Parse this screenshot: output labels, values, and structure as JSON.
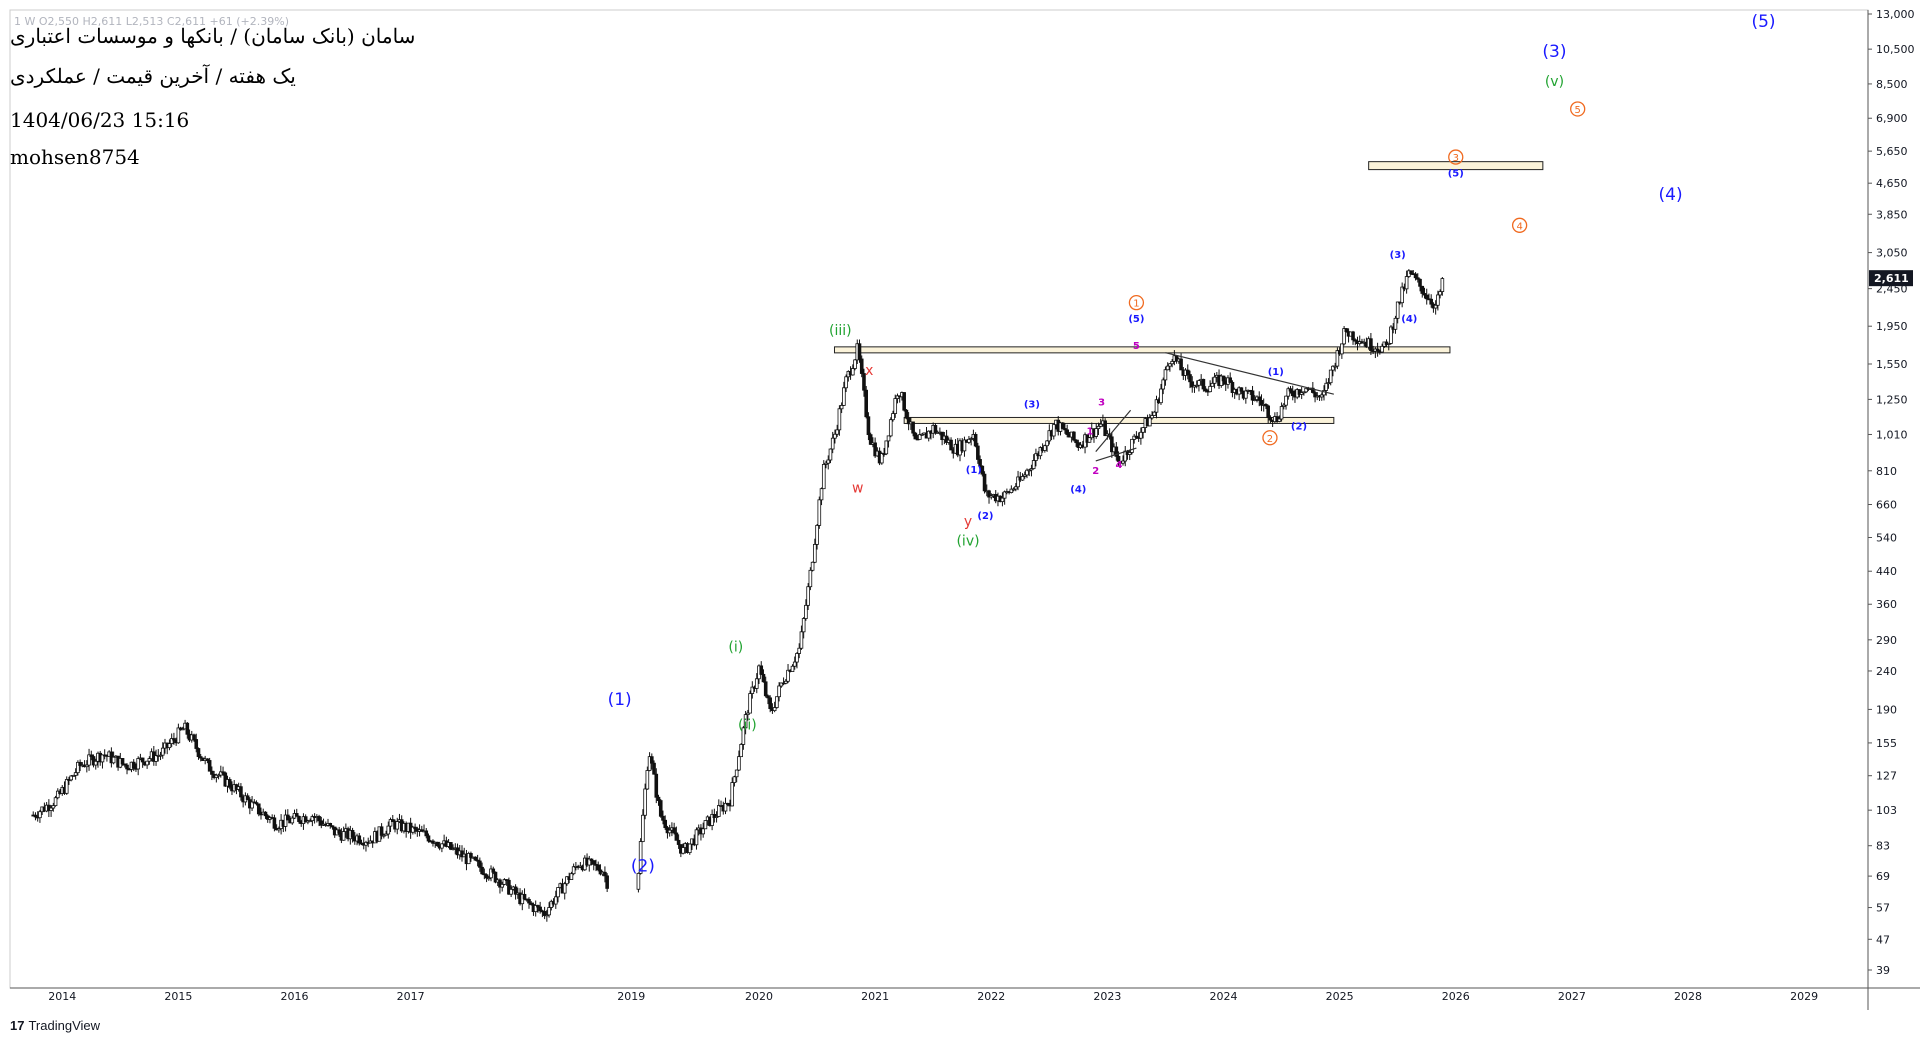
{
  "header": {
    "symbol_line": "سامان (بانک سامان) / بانکها و موسسات اعتباری",
    "timeframe_line": "یک هفته / آخرین قیمت / عملکردی",
    "datetime": "1404/06/23 15:16",
    "author": "mohsen8754",
    "ohlc_line": "1  W  O2,550  H2,611  L2,513  C2,611  +61 (+2.39%)"
  },
  "branding": {
    "logo_text": "TradingView",
    "logo_icon": "tradingview-logo-icon"
  },
  "colors": {
    "blue": "#1a1aff",
    "green": "#21a331",
    "red": "#e53935",
    "orange": "#f06a20",
    "magenta": "#c000c0",
    "candle": "#111111",
    "zone_fill": "#fbf3da",
    "zone_stroke": "#222222",
    "price_tag_bg": "#131722"
  },
  "chart_data": {
    "type": "candlestick",
    "scale": "log",
    "x_axis_labels": [
      "2014",
      "2015",
      "2016",
      "2017",
      "2019",
      "2020",
      "2021",
      "2022",
      "2023",
      "2024",
      "2025",
      "2026",
      "2027",
      "2028",
      "2029"
    ],
    "y_axis_labels": [
      "13,000",
      "10,500",
      "8,500",
      "6,900",
      "5,650",
      "4,650",
      "3,850",
      "3,050",
      "2,450",
      "1,950",
      "1,550",
      "1,250",
      "1,010",
      "810",
      "660",
      "540",
      "440",
      "360",
      "290",
      "240",
      "190",
      "155",
      "127",
      "103",
      "83",
      "69",
      "57",
      "47",
      "39"
    ],
    "ylim": [
      39,
      13000
    ],
    "last_price": "2,611",
    "price_path": [
      [
        "2013.8",
        100
      ],
      [
        "2014.0",
        110
      ],
      [
        "2014.2",
        135
      ],
      [
        "2014.4",
        145
      ],
      [
        "2014.6",
        135
      ],
      [
        "2014.9",
        145
      ],
      [
        "2015.1",
        170
      ],
      [
        "2015.3",
        135
      ],
      [
        "2015.5",
        120
      ],
      [
        "2015.7",
        105
      ],
      [
        "2015.9",
        95
      ],
      [
        "2016.2",
        100
      ],
      [
        "2016.4",
        90
      ],
      [
        "2016.7",
        86
      ],
      [
        "2016.9",
        95
      ],
      [
        "2017.2",
        88
      ],
      [
        "2017.5",
        78
      ],
      [
        "2017.8",
        68
      ],
      [
        "2018.0",
        60
      ],
      [
        "2018.2",
        55
      ],
      [
        "2018.5",
        75
      ],
      [
        "2018.7",
        72
      ],
      [
        "2018.9",
        50
      ],
      [
        "2019.0",
        65
      ],
      [
        "2019.1",
        150
      ],
      [
        "2019.2",
        100
      ],
      [
        "2019.4",
        80
      ],
      [
        "2019.6",
        95
      ],
      [
        "2019.8",
        110
      ],
      [
        "2019.95",
        190
      ],
      [
        "2020.05",
        245
      ],
      [
        "2020.15",
        185
      ],
      [
        "2020.25",
        225
      ],
      [
        "2020.4",
        275
      ],
      [
        "2020.5",
        450
      ],
      [
        "2020.6",
        800
      ],
      [
        "2020.7",
        1000
      ],
      [
        "2020.8",
        1400
      ],
      [
        "2020.9",
        1700
      ],
      [
        "2021.0",
        1000
      ],
      [
        "2021.1",
        850
      ],
      [
        "2021.25",
        1350
      ],
      [
        "2021.4",
        950
      ],
      [
        "2021.55",
        1050
      ],
      [
        "2021.75",
        920
      ],
      [
        "2021.9",
        1020
      ],
      [
        "2022.0",
        700
      ],
      [
        "2022.15",
        690
      ],
      [
        "2022.3",
        760
      ],
      [
        "2022.45",
        900
      ],
      [
        "2022.6",
        1080
      ],
      [
        "2022.8",
        950
      ],
      [
        "2023.0",
        1080
      ],
      [
        "2023.15",
        850
      ],
      [
        "2023.3",
        1000
      ],
      [
        "2023.45",
        1150
      ],
      [
        "2023.6",
        1650
      ],
      [
        "2023.75",
        1400
      ],
      [
        "2023.9",
        1350
      ],
      [
        "2024.05",
        1420
      ],
      [
        "2024.2",
        1300
      ],
      [
        "2024.35",
        1250
      ],
      [
        "2024.5",
        1100
      ],
      [
        "2024.6",
        1280
      ],
      [
        "2024.75",
        1350
      ],
      [
        "2024.9",
        1250
      ],
      [
        "2025.0",
        1550
      ],
      [
        "2025.1",
        1900
      ],
      [
        "2025.3",
        1750
      ],
      [
        "2025.45",
        1700
      ],
      [
        "2025.55",
        2200
      ],
      [
        "2025.65",
        2700
      ],
      [
        "2025.78",
        2400
      ],
      [
        "2025.88",
        2200
      ],
      [
        "2025.95",
        2611
      ]
    ],
    "zones": [
      {
        "name": "resistance-zone-top",
        "from": "2020.7",
        "to": "2026.0",
        "price_low": 1660,
        "price_high": 1720
      },
      {
        "name": "resistance-zone-mid",
        "from": "2021.3",
        "to": "2025.0",
        "price_low": 1080,
        "price_high": 1120
      },
      {
        "name": "target-zone",
        "from": "2025.3",
        "to": "2026.8",
        "price_low": 5050,
        "price_high": 5300
      }
    ],
    "trendlines": [
      {
        "name": "triangle-upper-line",
        "points": [
          [
            "2023.55",
            1660
          ],
          [
            "2025.0",
            1290
          ]
        ]
      },
      {
        "name": "wedge-upper-line",
        "points": [
          [
            "2022.95",
            910
          ],
          [
            "2023.25",
            1170
          ]
        ]
      },
      {
        "name": "wedge-lower-line",
        "points": [
          [
            "2022.95",
            860
          ],
          [
            "2023.3",
            930
          ]
        ]
      }
    ],
    "wave_labels": [
      {
        "text": "(1)",
        "color": "blue",
        "size": "large",
        "x": "2018.85",
        "price": 195
      },
      {
        "text": "(2)",
        "color": "blue",
        "size": "large",
        "x": "2019.05",
        "price": 71
      },
      {
        "text": "(i)",
        "color": "green",
        "size": "med",
        "x": "2019.85",
        "price": 270
      },
      {
        "text": "(ii)",
        "color": "green",
        "size": "med",
        "x": "2019.95",
        "price": 168
      },
      {
        "text": "(iii)",
        "color": "green",
        "size": "med",
        "x": "2020.75",
        "price": 1850
      },
      {
        "text": "x",
        "color": "red",
        "size": "med",
        "x": "2021.0",
        "price": 1450
      },
      {
        "text": "w",
        "color": "red",
        "size": "med",
        "x": "2020.9",
        "price": 710
      },
      {
        "text": "y",
        "color": "red",
        "size": "med",
        "x": "2021.85",
        "price": 580
      },
      {
        "text": "(iv)",
        "color": "green",
        "size": "med",
        "x": "2021.85",
        "price": 515
      },
      {
        "text": "(1)",
        "color": "blue",
        "size": "small",
        "x": "2021.9",
        "price": 800
      },
      {
        "text": "(2)",
        "color": "blue",
        "size": "small",
        "x": "2022.0",
        "price": 605
      },
      {
        "text": "(3)",
        "color": "blue",
        "size": "small",
        "x": "2022.4",
        "price": 1190
      },
      {
        "text": "(4)",
        "color": "blue",
        "size": "small",
        "x": "2022.8",
        "price": 710
      },
      {
        "text": "(5)",
        "color": "blue",
        "size": "small",
        "x": "2023.3",
        "price": 2000
      },
      {
        "text": "5",
        "color": "magenta",
        "size": "small",
        "x": "2023.3",
        "price": 1700
      },
      {
        "text": "1",
        "color": "magenta",
        "size": "small",
        "x": "2022.9",
        "price": 1010
      },
      {
        "text": "2",
        "color": "magenta",
        "size": "small",
        "x": "2022.95",
        "price": 795
      },
      {
        "text": "3",
        "color": "magenta",
        "size": "small",
        "x": "2023.0",
        "price": 1205
      },
      {
        "text": "4",
        "color": "magenta",
        "size": "small",
        "x": "2023.15",
        "price": 825
      },
      {
        "text": "(1)",
        "color": "blue",
        "size": "small",
        "x": "2024.5",
        "price": 1450
      },
      {
        "text": "(2)",
        "color": "blue",
        "size": "small",
        "x": "2024.7",
        "price": 1040
      },
      {
        "text": "(3)",
        "color": "blue",
        "size": "small",
        "x": "2025.55",
        "price": 2950
      },
      {
        "text": "(4)",
        "color": "blue",
        "size": "small",
        "x": "2025.65",
        "price": 2000
      },
      {
        "text": "(5)",
        "color": "blue",
        "size": "small",
        "x": "2026.05",
        "price": 4850
      },
      {
        "text": "(3)",
        "color": "blue",
        "size": "large",
        "x": "2026.9",
        "price": 10000
      },
      {
        "text": "(v)",
        "color": "green",
        "size": "med",
        "x": "2026.9",
        "price": 8400
      },
      {
        "text": "(4)",
        "color": "blue",
        "size": "large",
        "x": "2027.9",
        "price": 4200
      },
      {
        "text": "(5)",
        "color": "blue",
        "size": "large",
        "x": "2028.7",
        "price": 12000
      },
      {
        "text": "1",
        "color": "orange",
        "size": "circle",
        "x": "2023.3",
        "price": 2250
      },
      {
        "text": "2",
        "color": "orange",
        "size": "circle",
        "x": "2024.45",
        "price": 990
      },
      {
        "text": "3",
        "color": "orange",
        "size": "circle",
        "x": "2026.05",
        "price": 5450
      },
      {
        "text": "4",
        "color": "orange",
        "size": "circle",
        "x": "2026.6",
        "price": 3600
      },
      {
        "text": "5",
        "color": "orange",
        "size": "circle",
        "x": "2027.1",
        "price": 7300
      }
    ]
  }
}
